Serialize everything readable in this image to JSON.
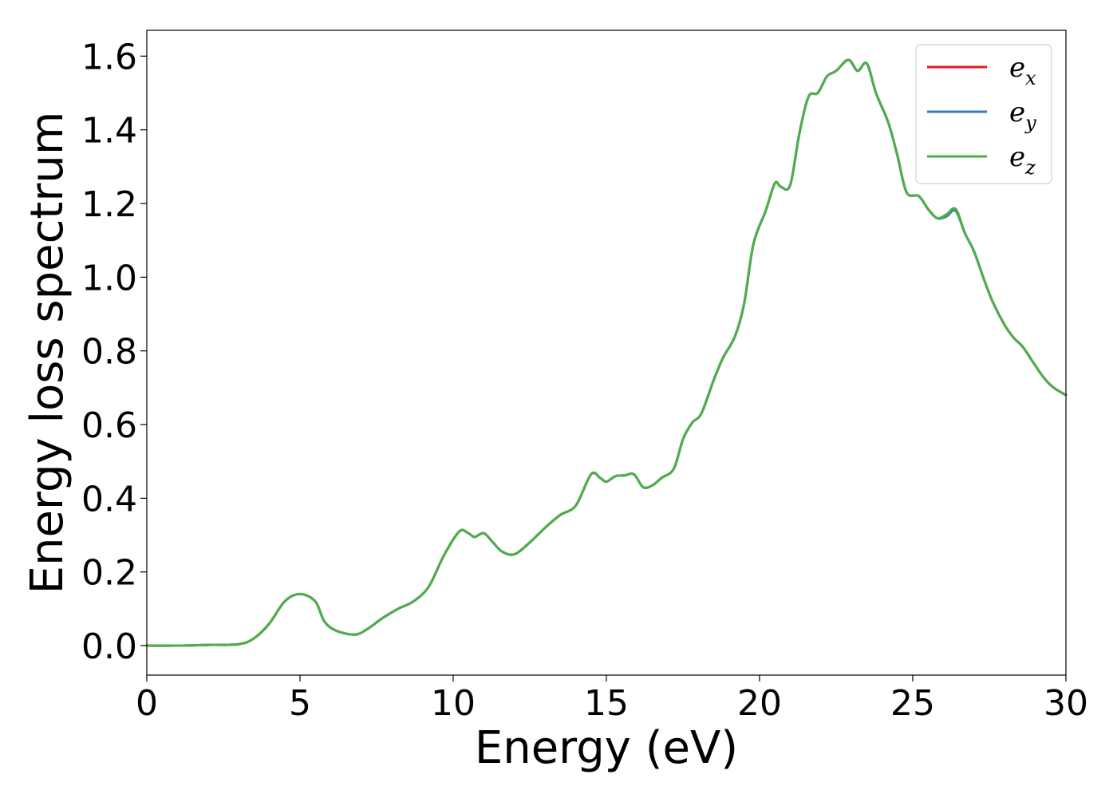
{
  "chart_data": {
    "type": "line",
    "xlabel": "Energy (eV)",
    "ylabel": "Energy loss spectrum",
    "xlim": [
      0,
      30
    ],
    "ylim": [
      -0.08,
      1.67
    ],
    "xticks": [
      0,
      5,
      10,
      15,
      20,
      25,
      30
    ],
    "xtick_labels": [
      "0",
      "5",
      "10",
      "15",
      "20",
      "25",
      "30"
    ],
    "yticks": [
      0.0,
      0.2,
      0.4,
      0.6,
      0.8,
      1.0,
      1.2,
      1.4,
      1.6
    ],
    "ytick_labels": [
      "0.0",
      "0.2",
      "0.4",
      "0.6",
      "0.8",
      "1.0",
      "1.2",
      "1.4",
      "1.6"
    ],
    "grid": false,
    "legend_position": "top-right",
    "x": [
      0,
      1,
      2,
      3,
      3.5,
      4,
      4.5,
      5,
      5.5,
      5.8,
      6.2,
      6.8,
      7.2,
      7.7,
      8.2,
      8.7,
      9.2,
      9.7,
      10.2,
      10.5,
      10.7,
      11,
      11.3,
      11.6,
      12,
      12.5,
      13,
      13.5,
      14,
      14.5,
      14.8,
      15,
      15.3,
      15.6,
      15.9,
      16.2,
      16.5,
      16.8,
      17.2,
      17.5,
      17.8,
      18.1,
      18.5,
      18.8,
      19.2,
      19.5,
      19.8,
      20.2,
      20.5,
      20.7,
      21,
      21.3,
      21.6,
      21.9,
      22.2,
      22.5,
      22.9,
      23.2,
      23.5,
      23.8,
      24.2,
      24.5,
      24.8,
      25.2,
      25.5,
      25.8,
      26.1,
      26.4,
      26.7,
      27,
      27.3,
      27.6,
      28,
      28.3,
      28.6,
      29,
      29.3,
      29.6,
      30
    ],
    "series": [
      {
        "name": "e_x",
        "label_base": "e",
        "label_sub": "x",
        "color": "#e41a1c",
        "values": [
          0.0,
          0.0,
          0.002,
          0.004,
          0.02,
          0.06,
          0.12,
          0.14,
          0.12,
          0.065,
          0.04,
          0.03,
          0.045,
          0.075,
          0.1,
          0.12,
          0.16,
          0.245,
          0.31,
          0.305,
          0.295,
          0.305,
          0.28,
          0.255,
          0.248,
          0.28,
          0.32,
          0.355,
          0.38,
          0.465,
          0.455,
          0.445,
          0.46,
          0.462,
          0.465,
          0.43,
          0.435,
          0.455,
          0.48,
          0.56,
          0.605,
          0.63,
          0.72,
          0.78,
          0.84,
          0.93,
          1.09,
          1.18,
          1.255,
          1.245,
          1.25,
          1.39,
          1.49,
          1.5,
          1.545,
          1.56,
          1.59,
          1.56,
          1.58,
          1.5,
          1.42,
          1.33,
          1.23,
          1.22,
          1.185,
          1.16,
          1.17,
          1.185,
          1.12,
          1.07,
          1.0,
          0.935,
          0.87,
          0.835,
          0.81,
          0.76,
          0.725,
          0.7,
          0.68
        ]
      },
      {
        "name": "e_y",
        "label_base": "e",
        "label_sub": "y",
        "color": "#377eb8",
        "values": [
          0.0,
          0.0,
          0.002,
          0.004,
          0.02,
          0.06,
          0.12,
          0.14,
          0.12,
          0.065,
          0.04,
          0.03,
          0.045,
          0.075,
          0.1,
          0.12,
          0.16,
          0.245,
          0.31,
          0.305,
          0.295,
          0.305,
          0.28,
          0.255,
          0.248,
          0.28,
          0.32,
          0.355,
          0.38,
          0.465,
          0.455,
          0.445,
          0.46,
          0.462,
          0.465,
          0.43,
          0.435,
          0.455,
          0.48,
          0.56,
          0.605,
          0.63,
          0.72,
          0.78,
          0.84,
          0.93,
          1.09,
          1.18,
          1.255,
          1.245,
          1.25,
          1.39,
          1.49,
          1.5,
          1.545,
          1.56,
          1.59,
          1.56,
          1.58,
          1.5,
          1.42,
          1.33,
          1.23,
          1.22,
          1.185,
          1.16,
          1.165,
          1.18,
          1.12,
          1.07,
          1.0,
          0.935,
          0.87,
          0.835,
          0.81,
          0.76,
          0.725,
          0.7,
          0.68
        ]
      },
      {
        "name": "e_z",
        "label_base": "e",
        "label_sub": "z",
        "color": "#4daf4a",
        "values": [
          0.0,
          0.0,
          0.002,
          0.004,
          0.02,
          0.06,
          0.12,
          0.14,
          0.12,
          0.065,
          0.04,
          0.03,
          0.045,
          0.075,
          0.1,
          0.12,
          0.16,
          0.245,
          0.31,
          0.305,
          0.295,
          0.305,
          0.28,
          0.255,
          0.248,
          0.28,
          0.32,
          0.355,
          0.38,
          0.465,
          0.455,
          0.445,
          0.46,
          0.462,
          0.465,
          0.43,
          0.435,
          0.455,
          0.48,
          0.56,
          0.605,
          0.63,
          0.72,
          0.78,
          0.84,
          0.93,
          1.09,
          1.18,
          1.255,
          1.245,
          1.25,
          1.39,
          1.49,
          1.5,
          1.545,
          1.56,
          1.59,
          1.56,
          1.58,
          1.5,
          1.42,
          1.33,
          1.23,
          1.22,
          1.185,
          1.16,
          1.17,
          1.185,
          1.12,
          1.07,
          1.0,
          0.935,
          0.87,
          0.835,
          0.81,
          0.76,
          0.725,
          0.7,
          0.68
        ]
      }
    ]
  }
}
